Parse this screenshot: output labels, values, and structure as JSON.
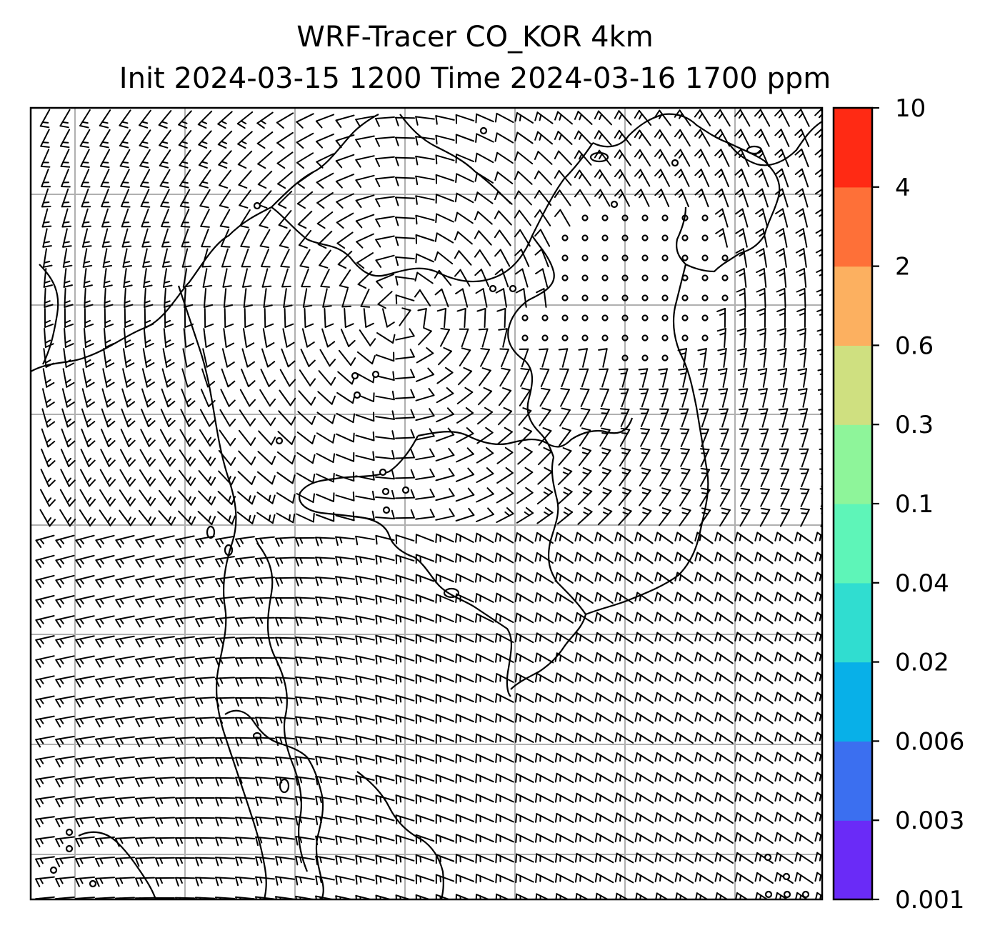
{
  "title": {
    "line1": "WRF-Tracer CO_KOR 4km",
    "line2": "Init 2024-03-15 1200 Time 2024-03-16 1700 ppm"
  },
  "colorbar": {
    "levels": [
      "0.001",
      "0.003",
      "0.006",
      "0.02",
      "0.04",
      "0.1",
      "0.3",
      "0.6",
      "2",
      "4",
      "10"
    ],
    "colors": [
      "#6a2bf7",
      "#3b6ff0",
      "#08b0e8",
      "#30ddd0",
      "#5ef5b8",
      "#8ef59a",
      "#cfe080",
      "#fcb060",
      "#fe7038",
      "#ff2a14"
    ]
  },
  "map": {
    "gridlines": true,
    "gridline_color": "#b0b0b0",
    "coastline_color": "#000000",
    "barb_color": "#000000",
    "calm_marker": "open-circle"
  }
}
